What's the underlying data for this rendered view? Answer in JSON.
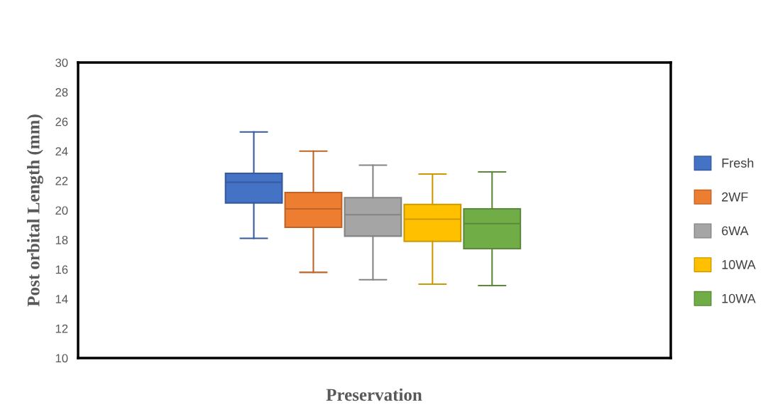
{
  "chart_data": {
    "type": "box",
    "xlabel": "Preservation",
    "ylabel": "Post orbital Length (mm)",
    "categories": [
      null
    ],
    "series": [
      {
        "name": "Fresh",
        "color": "#4472c4",
        "boxes": [
          {
            "low": 18.1,
            "q1": 20.5,
            "median": 21.9,
            "q3": 22.5,
            "high": 25.3
          }
        ]
      },
      {
        "name": "2WF",
        "color": "#ed7d31",
        "boxes": [
          {
            "low": 15.8,
            "q1": 18.85,
            "median": 20.1,
            "q3": 21.2,
            "high": 24.0
          }
        ]
      },
      {
        "name": "6WA",
        "color": "#a5a5a5",
        "boxes": [
          {
            "low": 15.3,
            "q1": 18.25,
            "median": 19.7,
            "q3": 20.85,
            "high": 23.05
          }
        ]
      },
      {
        "name": "10WA",
        "color": "#ffc000",
        "boxes": [
          {
            "low": 15.0,
            "q1": 17.9,
            "median": 19.4,
            "q3": 20.4,
            "high": 22.45
          }
        ]
      },
      {
        "name": "10WA",
        "color": "#70ad47",
        "boxes": [
          {
            "low": 14.9,
            "q1": 17.4,
            "median": 19.1,
            "q3": 20.1,
            "high": 22.6
          }
        ]
      }
    ],
    "ylim": [
      10,
      30
    ],
    "yticks": [
      10,
      12,
      14,
      16,
      18,
      20,
      22,
      24,
      26,
      28,
      30
    ],
    "tick_labels": "y",
    "legend": "right",
    "grid": false
  }
}
